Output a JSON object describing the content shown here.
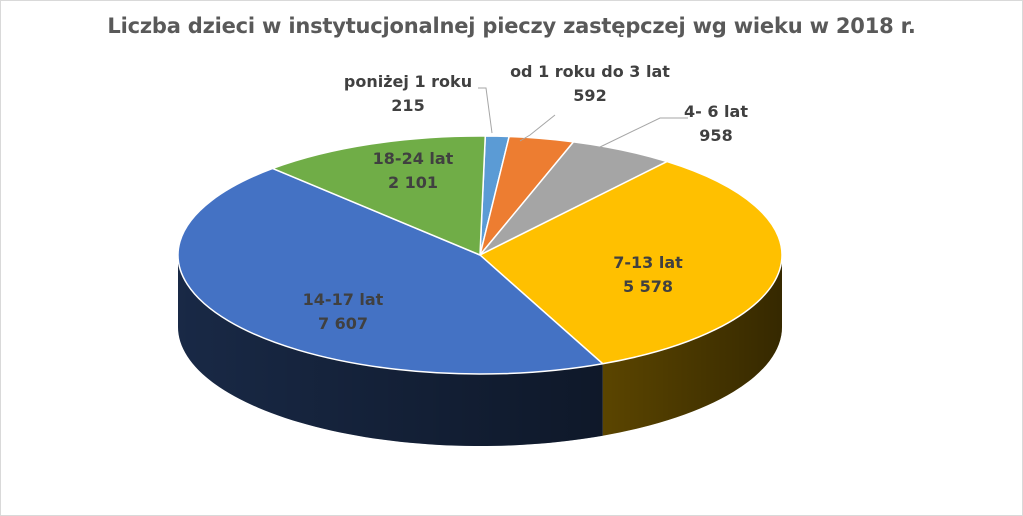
{
  "chart_data": {
    "type": "pie",
    "title": "Liczba dzieci w instytucjonalnej pieczy zastępczej wg wieku w 2018 r.",
    "slices": [
      {
        "label": "poniżej 1 roku",
        "value_text": "215",
        "value": 215,
        "color": "#5B9BD5"
      },
      {
        "label": "od 1 roku do 3 lat",
        "value_text": "592",
        "value": 592,
        "color": "#ED7D31"
      },
      {
        "label": "4- 6 lat",
        "value_text": "958",
        "value": 958,
        "color": "#A5A5A5"
      },
      {
        "label": "7-13 lat",
        "value_text": "5 578",
        "value": 5578,
        "color": "#FFC000"
      },
      {
        "label": "14-17 lat",
        "value_text": "7 607",
        "value": 7607,
        "color": "#4472C4"
      },
      {
        "label": "18-24 lat",
        "value_text": "2 101",
        "value": 2101,
        "color": "#70AD47"
      }
    ],
    "legend": "none",
    "style": "3d"
  }
}
